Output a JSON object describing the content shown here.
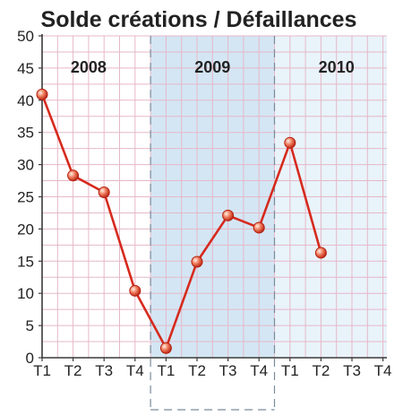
{
  "chart_data": {
    "type": "line",
    "title": "Solde créations / Défaillances",
    "xlabel": "",
    "ylabel": "",
    "ylim": [
      0,
      50
    ],
    "yticks": [
      0,
      5,
      10,
      15,
      20,
      25,
      30,
      35,
      40,
      45,
      50
    ],
    "categories": [
      "T1",
      "T2",
      "T3",
      "T4",
      "T1",
      "T2",
      "T3",
      "T4",
      "T1",
      "T2",
      "T3",
      "T4"
    ],
    "year_groups": [
      {
        "label": "2008",
        "start_index": 0,
        "end_index": 3
      },
      {
        "label": "2009",
        "start_index": 4,
        "end_index": 7
      },
      {
        "label": "2010",
        "start_index": 8,
        "end_index": 11
      }
    ],
    "series": [
      {
        "values": [
          40.9,
          28.3,
          25.7,
          10.4,
          1.5,
          14.9,
          22.1,
          20.2,
          33.4,
          16.3,
          null,
          null
        ]
      }
    ],
    "grid": true,
    "legend": "none",
    "colors": {
      "line": "#d62a1e",
      "marker_fill": "#f08060",
      "marker_stroke": "#b5200f",
      "grid": "#e6b8c8",
      "frame": "#3a3a3a",
      "band_2009": "#d4e6f4",
      "band_2010": "#e9f3fa",
      "separator": "#7a8a9a",
      "text": "#222222"
    }
  }
}
